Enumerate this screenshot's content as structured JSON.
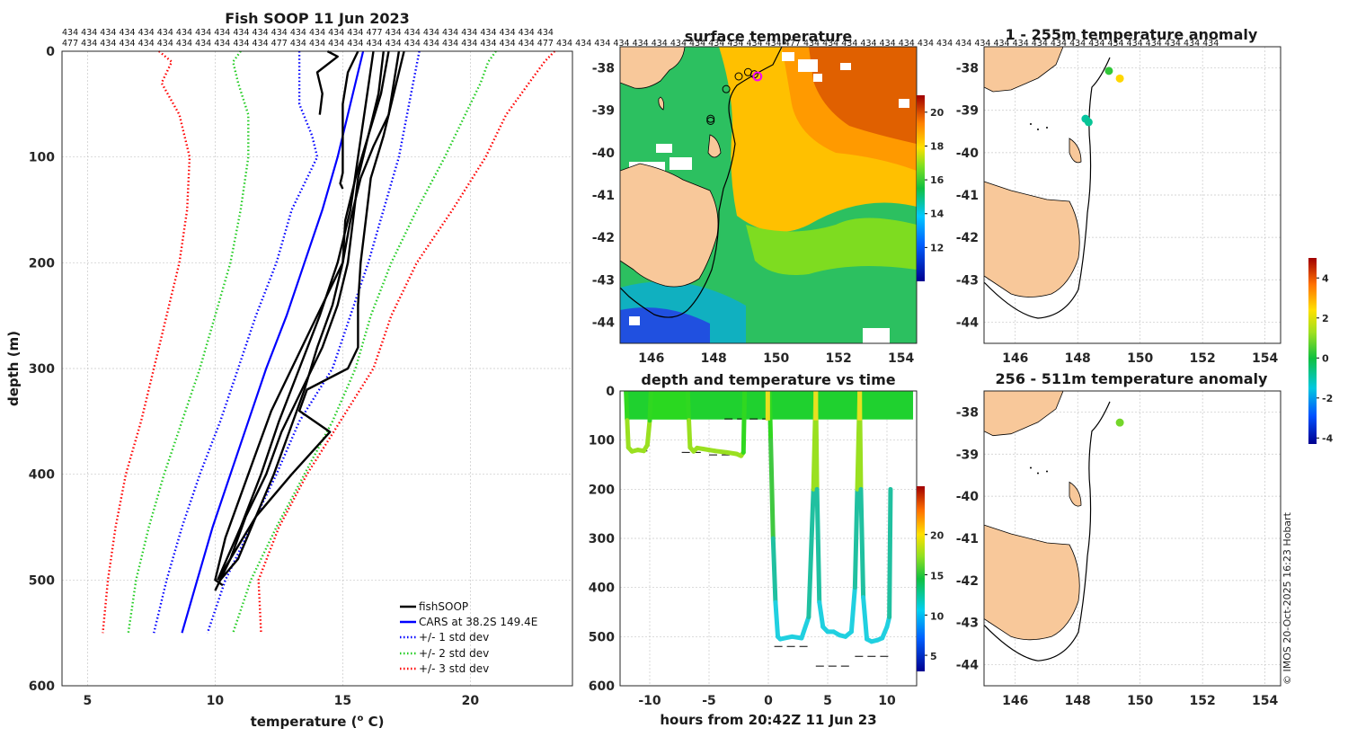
{
  "footer": {
    "copyright": "© IMOS 20-Oct-2025 16:23 Hobart"
  },
  "chart_data": [
    {
      "type": "line",
      "title": "Fish SOOP 11 Jun 2023",
      "xlabel": "temperature (",
      "xlabel_sup": "o",
      "xlabel_end": " C)",
      "ylabel": "depth (m)",
      "xlim": [
        4,
        24
      ],
      "ylim": [
        600,
        0
      ],
      "xticks": [
        5,
        10,
        15,
        20
      ],
      "yticks": [
        0,
        100,
        200,
        300,
        400,
        500,
        600
      ],
      "profile_ids_row1": [
        "434",
        "434",
        "434",
        "434",
        "434",
        "434",
        "434",
        "434",
        "434",
        "434",
        "434",
        "434",
        "434",
        "434",
        "434",
        "434",
        "477",
        "434",
        "434",
        "434",
        "434",
        "434",
        "434",
        "434",
        "434",
        "434"
      ],
      "profile_ids_row2": [
        "477",
        "434",
        "434",
        "434",
        "434",
        "434",
        "434",
        "434",
        "434",
        "434",
        "434",
        "477",
        "434",
        "434",
        "434",
        "434",
        "434",
        "434",
        "434",
        "434",
        "434",
        "434",
        "434",
        "434",
        "434",
        "477",
        "434",
        "434",
        "434",
        "434",
        "434",
        "434",
        "434",
        "434",
        "434",
        "434",
        "434",
        "434",
        "477",
        "434",
        "434",
        "434",
        "434",
        "434",
        "434",
        "434",
        "434",
        "434",
        "434",
        "434",
        "434",
        "434",
        "434",
        "434",
        "434",
        "434",
        "434",
        "434",
        "434",
        "434",
        "434"
      ],
      "series": [
        {
          "name": "fishSOOP",
          "color": "#000000",
          "style": "solid",
          "profiles": [
            {
              "depth": [
                0,
                20,
                50,
                80,
                100,
                115,
                125,
                130
              ],
              "temp": [
                15.6,
                15.2,
                15.0,
                15.0,
                15.0,
                15.0,
                14.9,
                15.0
              ]
            },
            {
              "depth": [
                0,
                5,
                20,
                40,
                60
              ],
              "temp": [
                14.4,
                14.8,
                14.0,
                14.2,
                14.1
              ]
            },
            {
              "depth": [
                0,
                30,
                60,
                90,
                120,
                160,
                200,
                240,
                280,
                320,
                360,
                400,
                440,
                480,
                500,
                510
              ],
              "temp": [
                17.2,
                17.0,
                16.8,
                16.2,
                15.7,
                15.3,
                15.0,
                14.6,
                14.0,
                13.5,
                12.9,
                12.3,
                11.6,
                10.9,
                10.2,
                10.0
              ]
            },
            {
              "depth": [
                0,
                40,
                80,
                120,
                160,
                200,
                240,
                280,
                320,
                360,
                400,
                440,
                480,
                500
              ],
              "temp": [
                16.8,
                16.5,
                16.0,
                15.6,
                15.4,
                15.2,
                14.8,
                14.2,
                13.4,
                12.6,
                12.0,
                11.2,
                10.6,
                10.2
              ]
            },
            {
              "depth": [
                0,
                40,
                80,
                120,
                160,
                200,
                230,
                260,
                300,
                340,
                380,
                420,
                460,
                500,
                505
              ],
              "temp": [
                16.6,
                16.4,
                16.0,
                15.5,
                15.1,
                15.0,
                14.4,
                13.8,
                13.0,
                12.2,
                11.6,
                11.0,
                10.4,
                10.0,
                10.3
              ]
            },
            {
              "depth": [
                0,
                40,
                80,
                120,
                160,
                200,
                240,
                280,
                300,
                320,
                340,
                360,
                400,
                440,
                480,
                500
              ],
              "temp": [
                17.4,
                17.0,
                16.6,
                16.1,
                15.9,
                15.7,
                15.6,
                15.6,
                15.2,
                13.6,
                13.3,
                14.5,
                13.0,
                11.6,
                10.6,
                10.1
              ]
            },
            {
              "depth": [
                0,
                50,
                100,
                150,
                200,
                250,
                300,
                350,
                400,
                450,
                500
              ],
              "temp": [
                16.2,
                15.9,
                15.6,
                15.3,
                14.8,
                14.1,
                13.3,
                12.5,
                11.8,
                11.0,
                10.1
              ]
            }
          ]
        },
        {
          "name": "CARS at 38.2S 149.4E",
          "color": "#0000ff",
          "style": "solid",
          "depth": [
            0,
            50,
            100,
            150,
            200,
            250,
            300,
            350,
            400,
            450,
            500,
            550
          ],
          "temp": [
            15.8,
            15.3,
            14.8,
            14.2,
            13.5,
            12.8,
            12.0,
            11.3,
            10.6,
            9.9,
            9.3,
            8.7
          ]
        },
        {
          "name": "+/- 1 std dev",
          "color": "#0000ff",
          "style": "dotted",
          "lower": {
            "depth": [
              0,
              50,
              80,
              100,
              150,
              200,
              250,
              300,
              350,
              400,
              450,
              500,
              550
            ],
            "temp": [
              13.3,
              13.3,
              13.8,
              14.0,
              13.0,
              12.4,
              11.6,
              10.9,
              10.2,
              9.4,
              8.7,
              8.1,
              7.6
            ]
          },
          "upper": {
            "depth": [
              0,
              50,
              100,
              150,
              200,
              250,
              300,
              350,
              400,
              450,
              500,
              550
            ],
            "temp": [
              18.0,
              17.6,
              17.2,
              16.6,
              16.0,
              15.3,
              14.6,
              13.3,
              12.4,
              11.4,
              10.4,
              9.7
            ]
          }
        },
        {
          "name": "+/- 2 std dev",
          "color": "#22cc22",
          "style": "dotted",
          "lower": {
            "depth": [
              0,
              10,
              30,
              60,
              100,
              150,
              200,
              250,
              300,
              350,
              400,
              450,
              500,
              550
            ],
            "temp": [
              11.0,
              10.7,
              10.9,
              11.3,
              11.3,
              11.0,
              10.6,
              10.0,
              9.4,
              8.7,
              8.0,
              7.4,
              6.9,
              6.6
            ]
          },
          "upper": {
            "depth": [
              0,
              10,
              30,
              60,
              100,
              150,
              200,
              250,
              300,
              350,
              400,
              450,
              500,
              550
            ],
            "temp": [
              21.0,
              20.7,
              20.4,
              19.8,
              19.0,
              17.9,
              16.9,
              16.1,
              15.5,
              14.6,
              13.5,
              12.4,
              11.4,
              10.7
            ]
          }
        },
        {
          "name": "+/- 3 std dev",
          "color": "#ff0000",
          "style": "dotted",
          "lower": {
            "depth": [
              0,
              10,
              30,
              60,
              100,
              150,
              200,
              250,
              300,
              350,
              400,
              450,
              500,
              550
            ],
            "temp": [
              7.8,
              8.3,
              7.9,
              8.6,
              9.0,
              8.9,
              8.6,
              8.1,
              7.6,
              7.1,
              6.5,
              6.1,
              5.8,
              5.6
            ]
          },
          "upper": {
            "depth": [
              0,
              10,
              30,
              60,
              100,
              150,
              200,
              250,
              300,
              350,
              400,
              450,
              500,
              550
            ],
            "temp": [
              23.3,
              22.9,
              22.3,
              21.4,
              20.6,
              19.3,
              17.9,
              16.9,
              16.2,
              14.9,
              13.6,
              12.5,
              11.7,
              11.8
            ]
          }
        }
      ]
    },
    {
      "type": "heatmap",
      "title": "surface temperature",
      "xlim": [
        145,
        154.5
      ],
      "ylim": [
        -44.5,
        -37.5
      ],
      "xticks": [
        146,
        148,
        150,
        152,
        154
      ],
      "yticks": [
        -38,
        -39,
        -40,
        -41,
        -42,
        -43,
        -44
      ],
      "colorbar": {
        "range": [
          10,
          21
        ],
        "ticks": [
          12,
          14,
          16,
          18,
          20
        ]
      },
      "track": {
        "lon": [
          147.9,
          147.9,
          148.4,
          148.8,
          149.1,
          149.3,
          149.4
        ],
        "lat": [
          -39.2,
          -39.25,
          -38.5,
          -38.2,
          -38.1,
          -38.15,
          -38.2
        ]
      }
    },
    {
      "type": "scatter",
      "title": "1 - 255m temperature anomaly",
      "xlim": [
        145,
        154.5
      ],
      "ylim": [
        -44.5,
        -37.5
      ],
      "xticks": [
        146,
        148,
        150,
        152,
        154
      ],
      "yticks": [
        -38,
        -39,
        -40,
        -41,
        -42,
        -43,
        -44
      ],
      "points": [
        {
          "lon": 149.0,
          "lat": -38.07,
          "anomaly": 0.3
        },
        {
          "lon": 149.35,
          "lat": -38.25,
          "anomaly": 2.5
        },
        {
          "lon": 148.25,
          "lat": -39.2,
          "anomaly": -0.9
        },
        {
          "lon": 148.35,
          "lat": -39.28,
          "anomaly": -0.8
        }
      ]
    },
    {
      "type": "scatter",
      "title": "256 - 511m temperature anomaly",
      "xlim": [
        145,
        154.5
      ],
      "ylim": [
        -44.5,
        -37.5
      ],
      "xticks": [
        146,
        148,
        150,
        152,
        154
      ],
      "yticks": [
        -38,
        -39,
        -40,
        -41,
        -42,
        -43,
        -44
      ],
      "points": [
        {
          "lon": 149.35,
          "lat": -38.25,
          "anomaly": 0.9
        }
      ],
      "colorbar": {
        "range": [
          -4.3,
          5
        ],
        "ticks": [
          4,
          2,
          0,
          -2,
          -4
        ]
      }
    },
    {
      "type": "scatter",
      "title": "depth and temperature vs time",
      "xlabel": "hours from 20:42Z 11 Jun 23",
      "xlim": [
        -12.5,
        12.5
      ],
      "ylim": [
        600,
        0
      ],
      "xticks": [
        -10,
        -5,
        0,
        5,
        10
      ],
      "yticks": [
        0,
        100,
        200,
        300,
        400,
        500,
        600
      ],
      "colorbar": {
        "range": [
          3,
          26
        ],
        "ticks": [
          5,
          10,
          15,
          20
        ]
      },
      "bottom_markers": [
        {
          "t": [
            -11.7,
            -10.2
          ],
          "depth": 122
        },
        {
          "t": [
            -7.3,
            -5.7
          ],
          "depth": 125
        },
        {
          "t": [
            -5.0,
            -2.1
          ],
          "depth": 130
        },
        {
          "t": [
            0.5,
            3.5
          ],
          "depth": 520
        },
        {
          "t": [
            4.0,
            7.0
          ],
          "depth": 560
        },
        {
          "t": [
            7.3,
            10.4
          ],
          "depth": 540
        },
        {
          "t": [
            -3.7,
            0.1
          ],
          "depth": 57
        }
      ],
      "tows": [
        {
          "t": [
            -12.0,
            -11.9,
            -11.8,
            -11.5,
            -11.0,
            -10.5,
            -10.2,
            -10.0,
            -9.9
          ],
          "depth": [
            0,
            60,
            115,
            123,
            120,
            122,
            110,
            60,
            0
          ]
        },
        {
          "t": [
            -6.8,
            -6.7,
            -6.6,
            -6.3,
            -6.0,
            -5.5,
            -5.0
          ],
          "depth": [
            0,
            60,
            115,
            123,
            116,
            118,
            120
          ]
        },
        {
          "t": [
            -5.0,
            -4.5,
            -3.5,
            -2.7,
            -2.3,
            -2.1,
            -2.0
          ],
          "depth": [
            120,
            122,
            125,
            128,
            132,
            125,
            0
          ]
        },
        {
          "t": [
            0.1,
            0.2,
            0.4,
            0.6,
            0.8,
            1.0,
            2.0,
            2.8,
            3.4,
            3.8,
            4.0
          ],
          "depth": [
            0,
            100,
            300,
            430,
            500,
            505,
            500,
            503,
            460,
            200,
            0
          ]
        },
        {
          "t": [
            4.0,
            4.1,
            4.3,
            4.6,
            5.0,
            5.5,
            6.0,
            6.5,
            7.0,
            7.3,
            7.5,
            7.7
          ],
          "depth": [
            0,
            200,
            430,
            480,
            490,
            490,
            497,
            500,
            490,
            400,
            200,
            0
          ]
        },
        {
          "t": [
            7.7,
            7.8,
            8.0,
            8.3,
            8.7,
            9.2,
            9.6,
            10.0,
            10.2,
            10.3
          ],
          "depth": [
            0,
            200,
            420,
            505,
            510,
            507,
            503,
            480,
            460,
            200
          ]
        }
      ]
    }
  ]
}
